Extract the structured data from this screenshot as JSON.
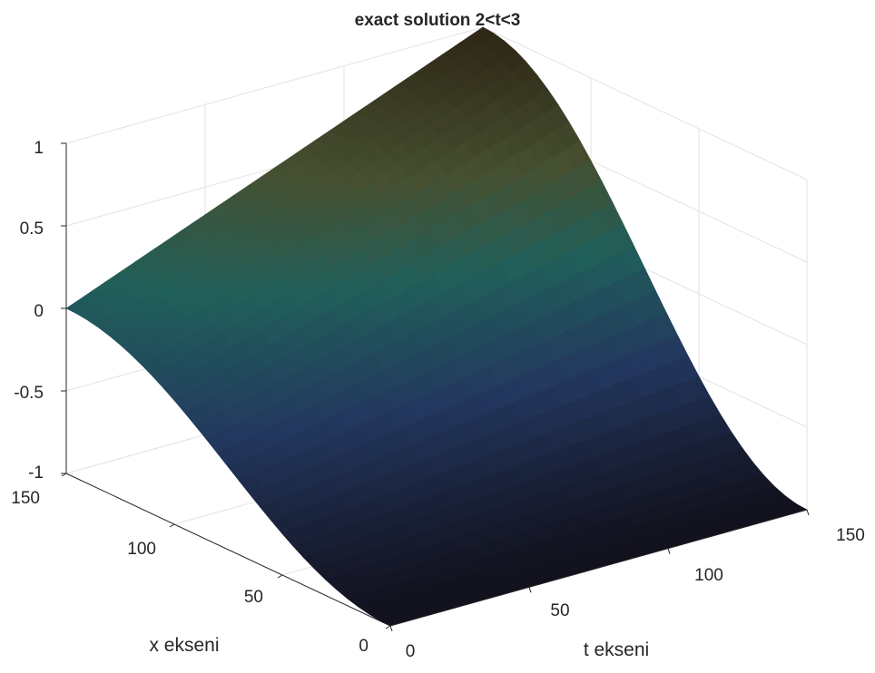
{
  "chart_data": {
    "type": "surface",
    "title": "exact solution 2<t<3",
    "xlabel": "t ekseni",
    "ylabel": "x ekseni",
    "zlabel": "",
    "t_ticks": [
      "0",
      "50",
      "100",
      "150"
    ],
    "x_ticks": [
      "0",
      "50",
      "100",
      "150"
    ],
    "z_ticks": [
      "-1",
      "-0.5",
      "0",
      "0.5",
      "1"
    ],
    "xlim": [
      0,
      150
    ],
    "ylim": [
      0,
      150
    ],
    "zlim": [
      -1,
      1
    ],
    "grid": true,
    "colormap": "parula",
    "surface_domain": {
      "t": [
        0,
        150
      ],
      "x": [
        0,
        150
      ]
    },
    "corner_values": [
      {
        "t": 0,
        "x": 150,
        "z": 0
      },
      {
        "t": 150,
        "x": 150,
        "z": 1
      },
      {
        "t": 0,
        "x": 0,
        "z": -1
      },
      {
        "t": 150,
        "x": 0,
        "z": -1
      }
    ]
  }
}
